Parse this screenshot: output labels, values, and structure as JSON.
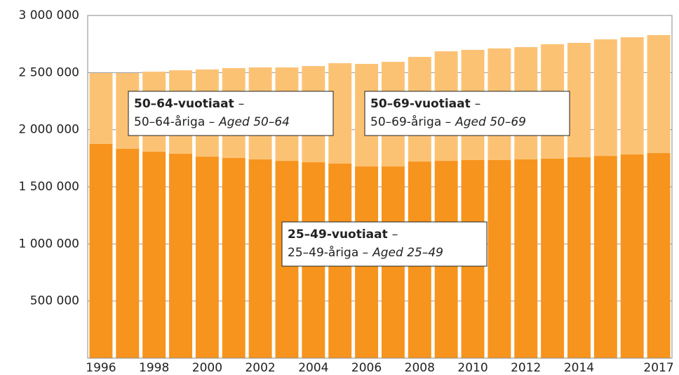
{
  "chart_data": {
    "type": "stacked-bar",
    "categories": [
      "1996",
      null,
      "1998",
      null,
      "2000",
      null,
      "2002",
      null,
      "2004",
      null,
      "2006",
      null,
      "2008",
      null,
      "2010",
      null,
      "2012",
      null,
      "2014",
      null,
      null,
      "2017"
    ],
    "series": [
      {
        "color": "#f7941d",
        "values": [
          1875000,
          1832000,
          1807000,
          1789000,
          1764000,
          1752000,
          1740000,
          1727000,
          1715000,
          1703000,
          1678000,
          1678000,
          1721000,
          1727000,
          1734000,
          1734000,
          1740000,
          1746000,
          1758000,
          1770000,
          1783000,
          1795000
        ]
      },
      {
        "color": "#fcc274",
        "values": [
          621000,
          664000,
          701000,
          731000,
          763000,
          787000,
          805000,
          818000,
          842000,
          879000,
          898000,
          916000,
          916000,
          959000,
          965000,
          977000,
          983000,
          1002000,
          1002000,
          1021000,
          1026000,
          1033000
        ]
      }
    ],
    "ylim": [
      0,
      3000000
    ],
    "yticks": [
      {
        "value": 500000,
        "label": "500 000"
      },
      {
        "value": 1000000,
        "label": "1 000 000"
      },
      {
        "value": 1500000,
        "label": "1 500 000"
      },
      {
        "value": 2000000,
        "label": "2 000 000"
      },
      {
        "value": 2500000,
        "label": "2 500 000"
      },
      {
        "value": 3000000,
        "label": "3 000 000"
      }
    ],
    "grid": true,
    "annotations": [
      {
        "bold": "50–64-vuotiaat",
        "sep": "–",
        "line2": "50–64-åriga –",
        "italic": "Aged 50–64"
      },
      {
        "bold": "50–69-vuotiaat",
        "sep": "–",
        "line2": "50–69-åriga –",
        "italic": "Aged 50–69"
      },
      {
        "bold": "25–49-vuotiaat",
        "sep": "–",
        "line2": "25–49-åriga –",
        "italic": "Aged 25–49"
      }
    ]
  }
}
